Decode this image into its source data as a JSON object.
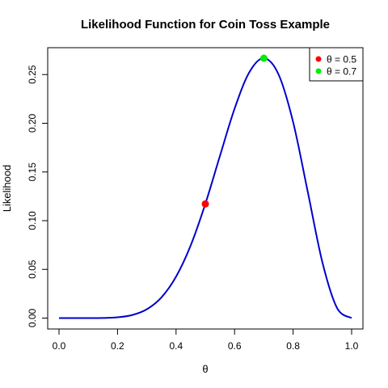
{
  "chart_data": {
    "type": "line",
    "title": "Likelihood Function for Coin Toss Example",
    "xlabel": "θ",
    "ylabel": "Likelihood",
    "xlim": [
      0,
      1
    ],
    "ylim": [
      0,
      0.27
    ],
    "x_ticks": [
      "0.0",
      "0.2",
      "0.4",
      "0.6",
      "0.8",
      "1.0"
    ],
    "y_ticks": [
      "0.00",
      "0.05",
      "0.10",
      "0.15",
      "0.20",
      "0.25"
    ],
    "grid": false,
    "legend_position": "top-right",
    "series": [
      {
        "color": "#0000cd",
        "x": [
          0.0,
          0.05,
          0.1,
          0.15,
          0.2,
          0.25,
          0.3,
          0.35,
          0.4,
          0.45,
          0.5,
          0.55,
          0.6,
          0.65,
          0.7,
          0.75,
          0.8,
          0.85,
          0.9,
          0.95,
          1.0
        ],
        "y": [
          0.0,
          0.0,
          0.0,
          0.0001,
          0.0008,
          0.0031,
          0.009,
          0.0212,
          0.0425,
          0.0746,
          0.1172,
          0.1665,
          0.215,
          0.2522,
          0.2668,
          0.2503,
          0.2013,
          0.1298,
          0.0574,
          0.0105,
          0.0
        ]
      }
    ],
    "points": [
      {
        "label": "θ = 0.5",
        "x": 0.5,
        "y": 0.1172,
        "color": "#ff0000"
      },
      {
        "label": "θ = 0.7",
        "x": 0.7,
        "y": 0.2668,
        "color": "#00ee00"
      }
    ]
  }
}
